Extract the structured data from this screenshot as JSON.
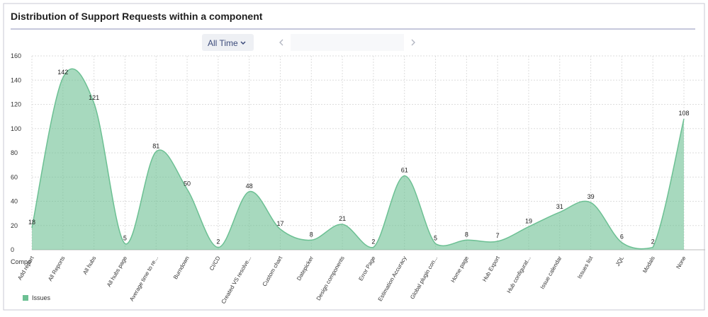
{
  "chart_data": {
    "type": "area",
    "title": "Distribution of Support Requests within a component",
    "filter": "All Time",
    "x_label": "Compo",
    "categories": [
      "Add report",
      "All Reports",
      "All hubs",
      "All hubs page",
      "Average time to re...",
      "Burndown",
      "CI/CD",
      "Created VS resolve...",
      "Custom chart",
      "Datepicker",
      "Design components",
      "Error Page",
      "Estimation Accuracy",
      "Global plugin con...",
      "Home page",
      "Hub Export",
      "Hub configurat...",
      "Issue calendar",
      "Issues list",
      "JQL",
      "Modals",
      "None"
    ],
    "series": [
      {
        "name": "Issues",
        "color": "#6cc093",
        "values": [
          18,
          142,
          121,
          5,
          81,
          50,
          2,
          48,
          17,
          8,
          21,
          2,
          61,
          5,
          8,
          7,
          19,
          31,
          39,
          6,
          2,
          108
        ]
      }
    ],
    "ylim": [
      0,
      160
    ],
    "yticks": [
      0,
      20,
      40,
      60,
      80,
      100,
      120,
      140,
      160
    ],
    "grid": true,
    "legend": "bottom-left"
  }
}
